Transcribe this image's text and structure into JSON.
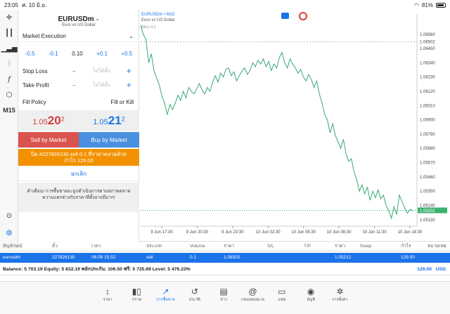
{
  "statusbar": {
    "time": "23:05",
    "date": "ศ. 10 มิ.ย.",
    "battery": "81%",
    "icons": [
      "wifi-icon",
      "battery-icon"
    ]
  },
  "lefttools": [
    "crosshair-icon",
    "candles-icon",
    "indicators-icon",
    "sliders-icon",
    "function-icon",
    "shapes-icon"
  ],
  "timeframe": "M15",
  "order": {
    "symbol": "EURUSDm",
    "symbol_desc": "Euro vs US Dollar",
    "execution": "Market Execution",
    "lot_buttons": [
      "-0.5",
      "-0.1",
      "0.10",
      "+0.1",
      "+0.5"
    ],
    "stop_loss_label": "Stop Loss",
    "take_profit_label": "Take Profit",
    "not_set": "ไม่ได้ตั้ง",
    "fill_policy_label": "Fill Policy",
    "fill_policy_value": "Fill or Kill",
    "bid_main": "1.05",
    "bid_big": "20",
    "bid_sup": "2",
    "ask_main": "1.05",
    "ask_big": "21",
    "ask_sup": "2",
    "sell_button": "Sell by Market",
    "buy_button": "Buy by Market",
    "close_line1": "ปิด #227826130 sell 0.1 ที่ราคาตลาดด้วย",
    "close_line2": "กำไร 129.00",
    "cancel": "ยกเลิก",
    "warning": "คำเตือน! การซื้อขายจะถูกดำเนินการตามสภาพตลาด ความแตกต่างกับราคาที่ตั้งอาจมีมาก!"
  },
  "chart_data": {
    "type": "line",
    "title": "EURUSDm • M15",
    "subtitle": "Euro vs US Dollar",
    "sell_label": "SELL 0.1",
    "current_price": "1.05202",
    "x_ticks": [
      "9 Jun 17:30",
      "9 Jun 20:30",
      "9 Jun 23:30",
      "10 Jun 02:30",
      "10 Jun 05:30",
      "10 Jun 08:30",
      "10 Jun 11:30",
      "10 Jun 14:30"
    ],
    "y_ticks": [
      "1.06560",
      "1.06450",
      "1.06340",
      "1.06230",
      "1.06120",
      "1.06010",
      "1.05900",
      "1.05790",
      "1.05680",
      "1.05570",
      "1.05460",
      "1.05350",
      "1.05240",
      "1.05130"
    ],
    "ylim": [
      1.0508,
      1.0664
    ],
    "sell_price": 1.06502,
    "series": [
      {
        "values": [
          1.0663,
          1.0656,
          1.0652,
          1.0634,
          1.0641,
          1.0628,
          1.0622,
          1.0617,
          1.0608,
          1.0603,
          1.0594,
          1.0602,
          1.0598,
          1.0603,
          1.0609,
          1.0605,
          1.0612,
          1.0607,
          1.0615,
          1.0612,
          1.061,
          1.0614,
          1.0618,
          1.0613,
          1.061,
          1.0615,
          1.0612,
          1.0619,
          1.0624,
          1.0619,
          1.0626,
          1.0623,
          1.0629,
          1.063,
          1.0624,
          1.0627,
          1.062,
          1.0624,
          1.0628,
          1.063,
          1.0625,
          1.0628,
          1.0634,
          1.0631,
          1.0636,
          1.0633,
          1.0637,
          1.0631,
          1.0635,
          1.0628,
          1.0633,
          1.063,
          1.0638,
          1.0642,
          1.0634,
          1.063,
          1.0637,
          1.0633,
          1.063,
          1.0626,
          1.0629,
          1.0623,
          1.062,
          1.0625,
          1.0621,
          1.0615,
          1.062,
          1.061,
          1.0603,
          1.0594,
          1.059,
          1.058,
          1.0587,
          1.0578,
          1.0573,
          1.0568,
          1.0575,
          1.0564,
          1.0558,
          1.056,
          1.055,
          1.0544,
          1.0535,
          1.054,
          1.0533,
          1.0538,
          1.0528,
          1.0535,
          1.053,
          1.0536,
          1.0529,
          1.0532,
          1.0524,
          1.052,
          1.0514,
          1.0523,
          1.0517,
          1.0532,
          1.0527,
          1.0522,
          1.0518,
          1.0521,
          1.052
        ]
      }
    ]
  },
  "table": {
    "headers": [
      "สัญลักษณ์",
      "ตั๋ว",
      "เวลา",
      "ประเภท",
      "Volume",
      "ราคา",
      "S/L",
      "T/P",
      "ราคา",
      "Swap",
      "กำไร",
      "หมายเหตุ"
    ],
    "row": [
      "eurusdm",
      "227826130",
      "06.09 15:52",
      "sell",
      "0.1",
      "1.06502",
      "",
      "",
      "1.05212",
      "",
      "129.00",
      ""
    ],
    "balance": "Balance: 5 703.19 Equity: 5 832.19 พลักประกัน: 106.50 ฟรี: 5 725.69 Level: 5 476.23%",
    "total": "129.00",
    "currency": "USD"
  },
  "nav": [
    {
      "label": "ราคา",
      "icon": "↕",
      "name": "quotes-icon"
    },
    {
      "label": "กราฟ",
      "icon": "▮▯",
      "name": "chart-icon"
    },
    {
      "label": "การซื้อขาย",
      "icon": "↗",
      "name": "trade-icon",
      "active": true
    },
    {
      "label": "ประวัติ",
      "icon": "↺",
      "name": "history-icon"
    },
    {
      "label": "ข่าว",
      "icon": "▤",
      "name": "news-icon"
    },
    {
      "label": "กล่องจดหมาย",
      "icon": "@",
      "name": "mailbox-icon"
    },
    {
      "label": "แชท",
      "icon": "▭",
      "name": "chat-icon"
    },
    {
      "label": "บัญชี",
      "icon": "◉",
      "name": "account-icon"
    },
    {
      "label": "การตั้งค่า",
      "icon": "✲",
      "name": "settings-icon"
    }
  ]
}
